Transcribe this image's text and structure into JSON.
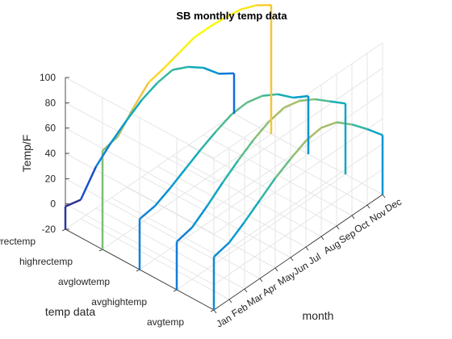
{
  "chart_data": {
    "type": "line",
    "title": "SB monthly temp data",
    "xlabel": "month",
    "ylabel": "temp data",
    "zlabel": "Temp/F",
    "categories": [
      "Jan",
      "Feb",
      "Mar",
      "Apr",
      "May",
      "Jun",
      "Jul",
      "Aug",
      "Sep",
      "Oct",
      "Nov",
      "Dec"
    ],
    "y_categories": [
      "lowrectemp",
      "highrectemp",
      "avglowtemp",
      "avghightemp",
      "avgtemp"
    ],
    "zlim": [
      -20,
      100
    ],
    "zticks": [
      "-20",
      "0",
      "20",
      "40",
      "60",
      "80",
      "100"
    ],
    "grid": true,
    "colormap": "parula",
    "series": [
      {
        "name": "lowrectemp",
        "values": [
          -2,
          -5,
          13,
          24,
          33,
          41,
          46,
          48,
          42,
          33,
          20,
          12
        ]
      },
      {
        "name": "highrectemp",
        "values": [
          58,
          61,
          75,
          87,
          90,
          94,
          98,
          98,
          97,
          95,
          90,
          82
        ]
      },
      {
        "name": "avglowtemp",
        "values": [
          20,
          22,
          28,
          35,
          42,
          48,
          53,
          54,
          51,
          44,
          33,
          26
        ]
      },
      {
        "name": "avghightemp",
        "values": [
          18,
          21,
          30,
          40,
          49,
          57,
          63,
          66,
          63,
          56,
          46,
          36
        ]
      },
      {
        "name": "avgtemp",
        "values": [
          22,
          25,
          33,
          42,
          51,
          58,
          64,
          66,
          62,
          52,
          40,
          27
        ]
      }
    ]
  }
}
